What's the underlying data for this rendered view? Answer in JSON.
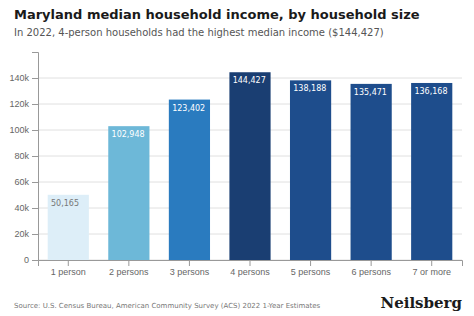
{
  "chart_data": {
    "type": "bar",
    "title": "Maryland median household income, by household size",
    "subtitle": "In 2022, 4-person households had the highest median income ($144,427)",
    "categories": [
      "1 person",
      "2 persons",
      "3 persons",
      "4 persons",
      "5 persons",
      "6 persons",
      "7 or more"
    ],
    "values": [
      50165,
      102948,
      123402,
      144427,
      138188,
      135471,
      136168
    ],
    "value_labels": [
      "50,165",
      "102,948",
      "123,402",
      "144,427",
      "138,188",
      "135,471",
      "136,168"
    ],
    "colors": [
      "#ddeef8",
      "#6db8d8",
      "#2a7bbf",
      "#1a3e72",
      "#1e4d8c",
      "#1e4d8c",
      "#1e4d8c"
    ],
    "data_labels": true,
    "ylim": [
      0,
      160000
    ],
    "yticks": [
      0,
      {
        "value": 20000,
        "label": "20k"
      },
      {
        "value": 40000,
        "label": "40k"
      },
      {
        "value": 60000,
        "label": "60k"
      },
      {
        "value": 80000,
        "label": "80k"
      },
      {
        "value": 100000,
        "label": "100k"
      },
      {
        "value": 120000,
        "label": "120k"
      },
      {
        "value": 140000,
        "label": "140k"
      }
    ],
    "grid": true,
    "annotations": [
      "Source: U.S. Census Bureau, American Community Survey (ACS) 2022 1-Year Estimates",
      "Neilsberg"
    ]
  }
}
